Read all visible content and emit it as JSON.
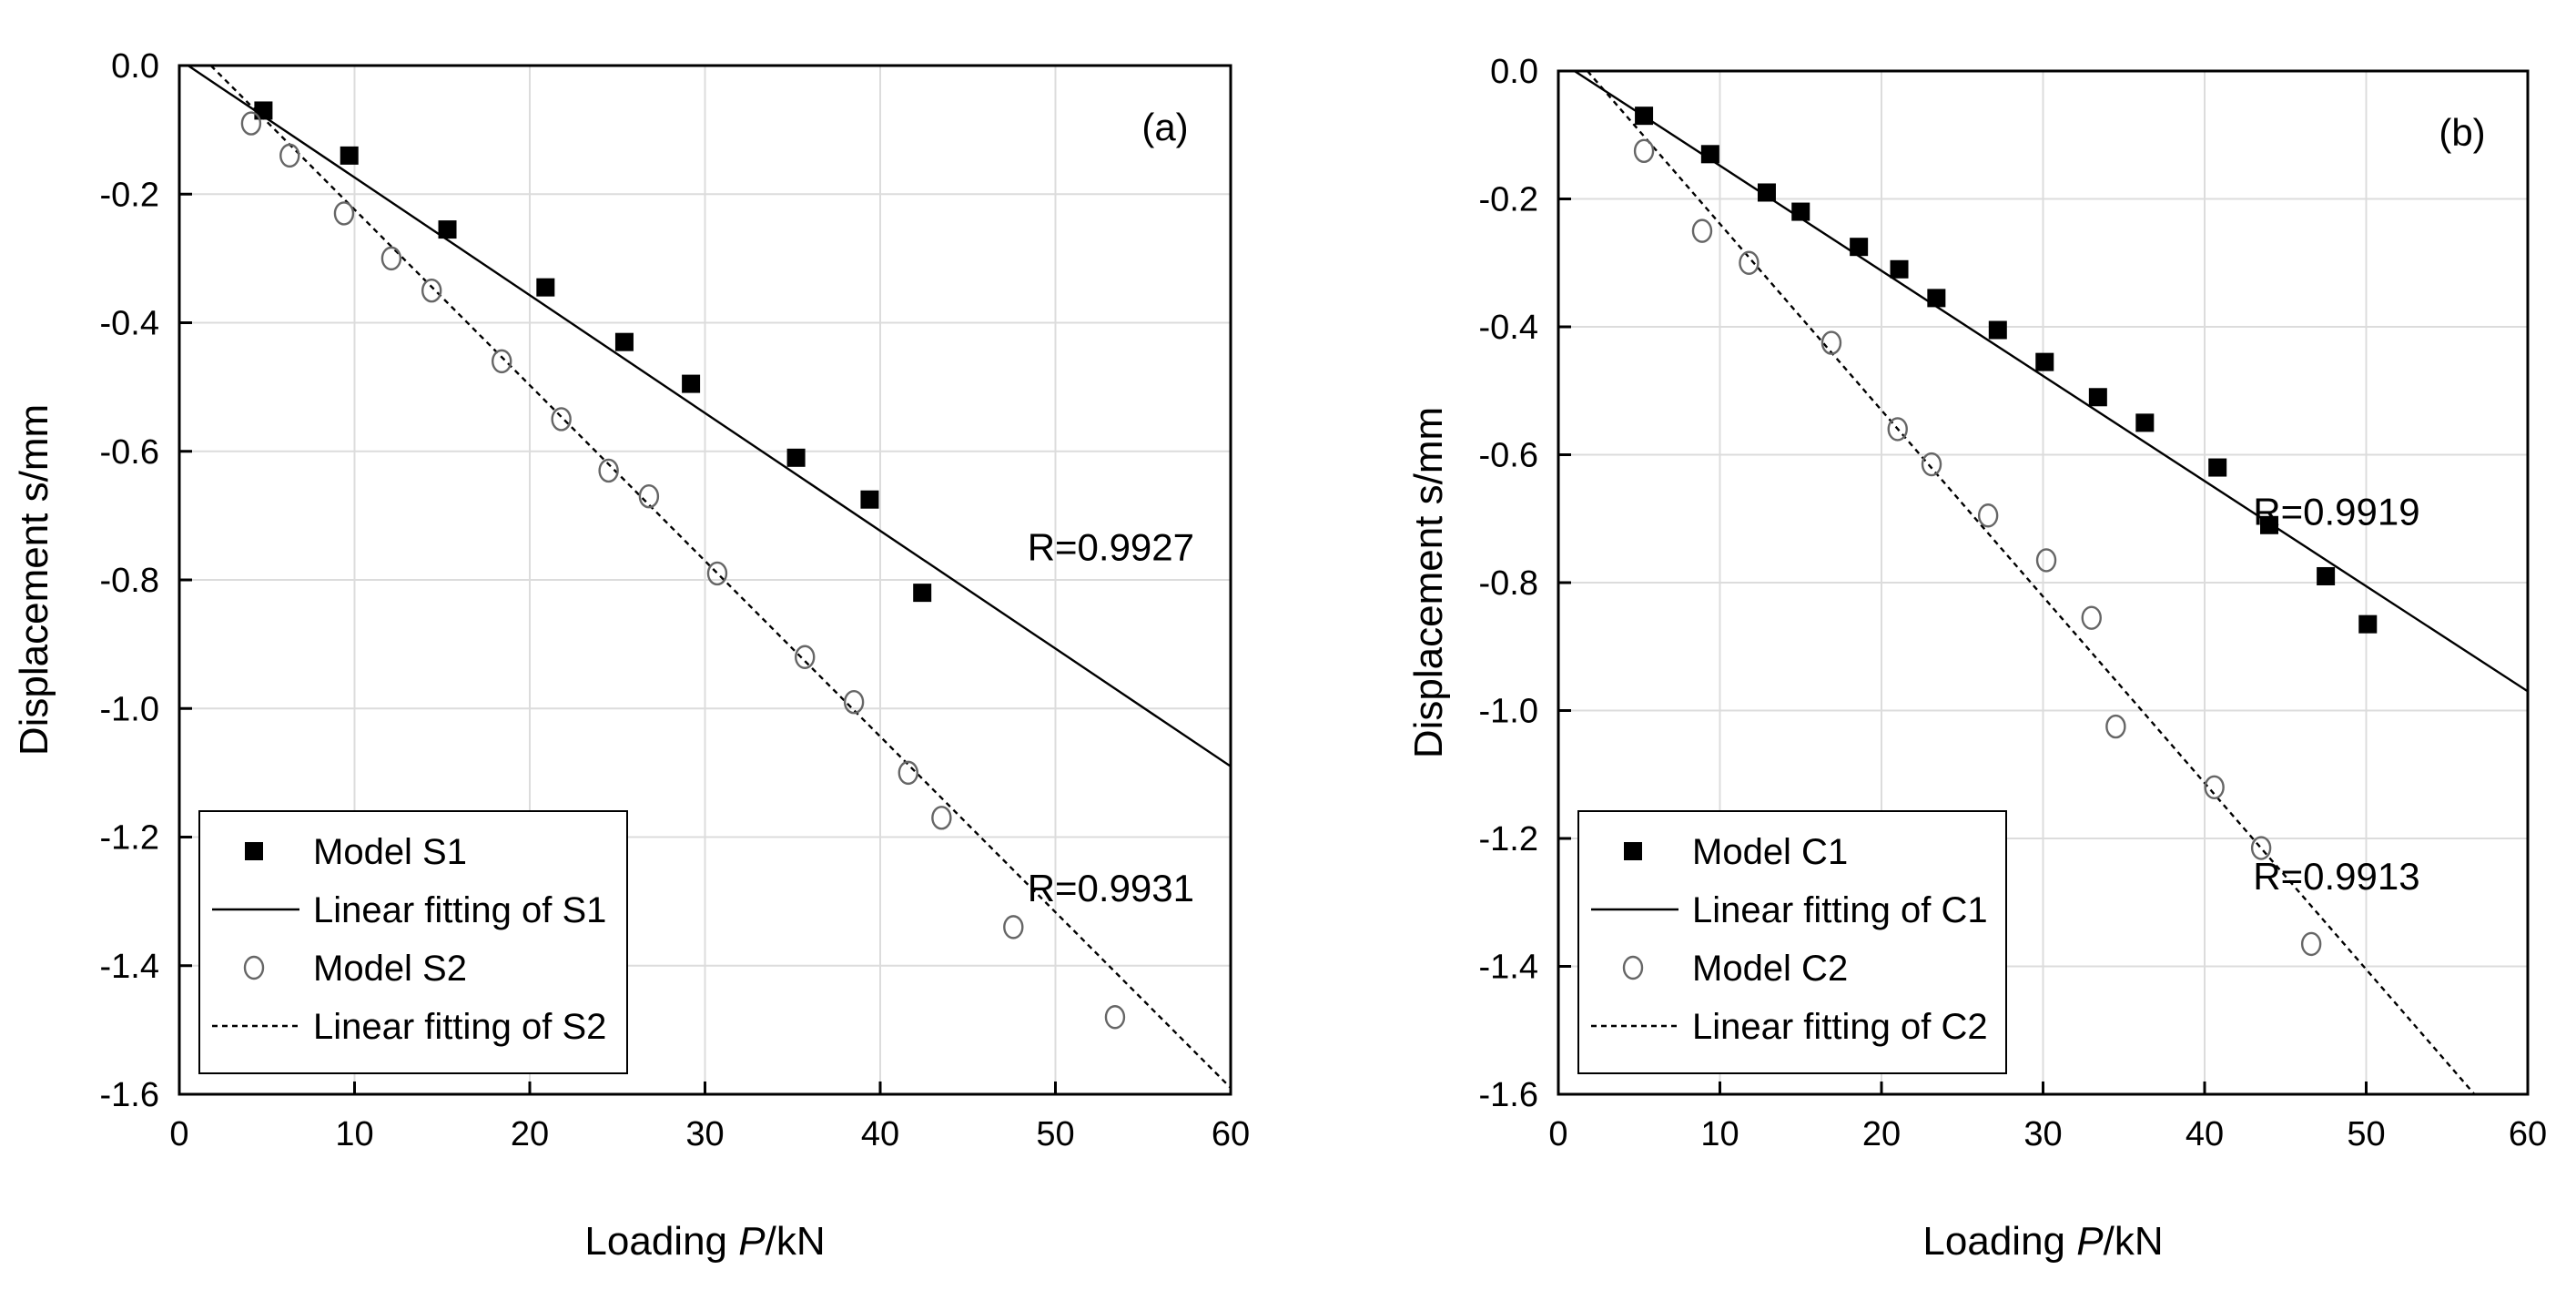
{
  "chart_data": [
    {
      "type": "scatter",
      "panel_label": "(a)",
      "xlabel_prefix": "Loading ",
      "xlabel_var": "P",
      "xlabel_suffix": "/kN",
      "ylabel": "Displacement s/mm",
      "xlim": [
        0,
        60
      ],
      "ylim": [
        -1.6,
        0.0
      ],
      "xticks": [
        0,
        10,
        20,
        30,
        40,
        50,
        60
      ],
      "yticks": [
        0.0,
        -0.2,
        -0.4,
        -0.6,
        -0.8,
        -1.0,
        -1.2,
        -1.4,
        -1.6
      ],
      "ytick_labels": [
        "0.0",
        "-0.2",
        "-0.4",
        "-0.6",
        "-0.8",
        "-1.0",
        "-1.2",
        "-1.4",
        "-1.6"
      ],
      "grid": true,
      "legend_position": "bottom-left",
      "series": [
        {
          "name": "Model S1",
          "marker": "filled-square",
          "x": [
            4.8,
            9.7,
            15.3,
            20.9,
            25.4,
            29.2,
            35.2,
            39.4,
            42.4
          ],
          "y": [
            -0.07,
            -0.14,
            -0.255,
            -0.345,
            -0.43,
            -0.495,
            -0.61,
            -0.675,
            -0.82
          ]
        },
        {
          "name": "Linear fitting of S1",
          "line_style": "solid",
          "x": [
            0.5,
            60
          ],
          "y": [
            0.0,
            -1.09
          ]
        },
        {
          "name": "Model S2",
          "marker": "open-circle",
          "x": [
            4.1,
            6.3,
            9.4,
            12.1,
            14.4,
            18.4,
            21.8,
            24.5,
            26.8,
            30.7,
            35.7,
            38.5,
            41.6,
            43.5,
            47.6,
            53.4
          ],
          "y": [
            -0.09,
            -0.14,
            -0.23,
            -0.3,
            -0.35,
            -0.46,
            -0.55,
            -0.63,
            -0.67,
            -0.79,
            -0.92,
            -0.99,
            -1.1,
            -1.17,
            -1.34,
            -1.48
          ]
        },
        {
          "name": "Linear fitting of S2",
          "line_style": "dashed",
          "x": [
            1.8,
            60
          ],
          "y": [
            0.0,
            -1.59
          ]
        }
      ],
      "annotations": [
        {
          "text": "R=0.9927",
          "x": 48.4,
          "y": -0.75
        },
        {
          "text": "R=0.9931",
          "x": 48.4,
          "y": -1.28
        }
      ]
    },
    {
      "type": "scatter",
      "panel_label": "(b)",
      "xlabel_prefix": "Loading ",
      "xlabel_var": "P",
      "xlabel_suffix": "/kN",
      "ylabel": "Displacement s/mm",
      "xlim": [
        0,
        60
      ],
      "ylim": [
        -1.6,
        0.0
      ],
      "xticks": [
        0,
        10,
        20,
        30,
        40,
        50,
        60
      ],
      "yticks": [
        0.0,
        -0.2,
        -0.4,
        -0.6,
        -0.8,
        -1.0,
        -1.2,
        -1.4,
        -1.6
      ],
      "ytick_labels": [
        "0.0",
        "-0.2",
        "-0.4",
        "-0.6",
        "-0.8",
        "-1.0",
        "-1.2",
        "-1.4",
        "-1.6"
      ],
      "grid": true,
      "legend_position": "bottom-left",
      "series": [
        {
          "name": "Model C1",
          "marker": "filled-square",
          "x": [
            5.3,
            9.4,
            12.9,
            15.0,
            18.6,
            21.1,
            23.4,
            27.2,
            30.1,
            33.4,
            36.3,
            40.8,
            44.0,
            47.5,
            50.1
          ],
          "y": [
            -0.07,
            -0.13,
            -0.19,
            -0.22,
            -0.275,
            -0.31,
            -0.355,
            -0.405,
            -0.455,
            -0.51,
            -0.55,
            -0.62,
            -0.71,
            -0.79,
            -0.865
          ]
        },
        {
          "name": "Linear fitting of C1",
          "line_style": "solid",
          "x": [
            1.0,
            60
          ],
          "y": [
            0.0,
            -0.97
          ]
        },
        {
          "name": "Model C2",
          "marker": "open-circle",
          "x": [
            5.3,
            8.9,
            11.8,
            16.9,
            21.0,
            23.1,
            26.6,
            30.2,
            33.0,
            34.5,
            40.6,
            43.5,
            46.6
          ],
          "y": [
            -0.125,
            -0.25,
            -0.3,
            -0.425,
            -0.56,
            -0.615,
            -0.695,
            -0.765,
            -0.855,
            -1.025,
            -1.12,
            -1.215,
            -1.365
          ]
        },
        {
          "name": "Linear fitting of C2",
          "line_style": "dashed",
          "x": [
            1.8,
            56.7
          ],
          "y": [
            0.0,
            -1.6
          ]
        }
      ],
      "annotations": [
        {
          "text": "R=0.9919",
          "x": 43.0,
          "y": -0.69
        },
        {
          "text": "R=0.9913",
          "x": 43.0,
          "y": -1.26
        }
      ]
    }
  ]
}
